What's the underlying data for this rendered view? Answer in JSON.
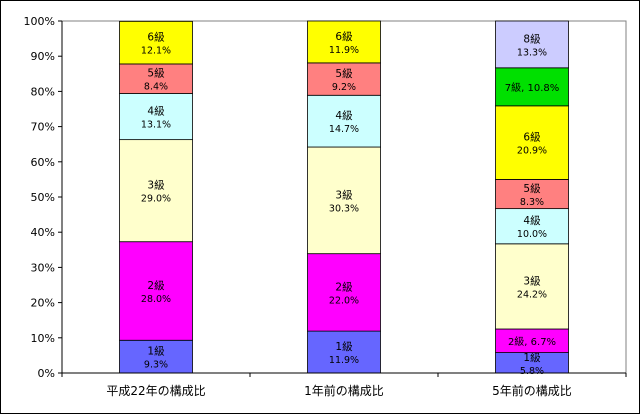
{
  "chart_data": {
    "type": "bar",
    "stacked": true,
    "percent": true,
    "categories": [
      "平成22年の構成比",
      "1年前の構成比",
      "5年前の構成比"
    ],
    "ylim": [
      0,
      100
    ],
    "y_ticks": [
      "0%",
      "10%",
      "20%",
      "30%",
      "40%",
      "50%",
      "60%",
      "70%",
      "80%",
      "90%",
      "100%"
    ],
    "grid": false,
    "legend": "none",
    "stacks": [
      [
        {
          "grade": "1級",
          "value": 9.3,
          "label": "9.3%",
          "color": "#6666ff"
        },
        {
          "grade": "2級",
          "value": 28.0,
          "label": "28.0%",
          "color": "#ff00ff"
        },
        {
          "grade": "3級",
          "value": 29.0,
          "label": "29.0%",
          "color": "#ffffcc"
        },
        {
          "grade": "4級",
          "value": 13.1,
          "label": "13.1%",
          "color": "#ccffff"
        },
        {
          "grade": "5級",
          "value": 8.4,
          "label": "8.4%",
          "color": "#ff8080"
        },
        {
          "grade": "6級",
          "value": 12.1,
          "label": "12.1%",
          "color": "#ffff00"
        }
      ],
      [
        {
          "grade": "1級",
          "value": 11.9,
          "label": "11.9%",
          "color": "#6666ff"
        },
        {
          "grade": "2級",
          "value": 22.0,
          "label": "22.0%",
          "color": "#ff00ff"
        },
        {
          "grade": "3級",
          "value": 30.3,
          "label": "30.3%",
          "color": "#ffffcc"
        },
        {
          "grade": "4級",
          "value": 14.7,
          "label": "14.7%",
          "color": "#ccffff"
        },
        {
          "grade": "5級",
          "value": 9.2,
          "label": "9.2%",
          "color": "#ff8080"
        },
        {
          "grade": "6級",
          "value": 11.9,
          "label": "11.9%",
          "color": "#ffff00"
        }
      ],
      [
        {
          "grade": "1級",
          "value": 5.8,
          "label": "5.8%",
          "color": "#6666ff"
        },
        {
          "grade": "2級",
          "value": 6.7,
          "label": "6.7%",
          "color": "#ff00ff",
          "inline": true
        },
        {
          "grade": "3級",
          "value": 24.2,
          "label": "24.2%",
          "color": "#ffffcc"
        },
        {
          "grade": "4級",
          "value": 10.0,
          "label": "10.0%",
          "color": "#ccffff"
        },
        {
          "grade": "5級",
          "value": 8.3,
          "label": "8.3%",
          "color": "#ff8080"
        },
        {
          "grade": "6級",
          "value": 20.9,
          "label": "20.9%",
          "color": "#ffff00"
        },
        {
          "grade": "7級",
          "value": 10.8,
          "label": "10.8%",
          "color": "#00e000",
          "inline": true
        },
        {
          "grade": "8級",
          "value": 13.3,
          "label": "13.3%",
          "color": "#ccccff"
        }
      ]
    ]
  }
}
